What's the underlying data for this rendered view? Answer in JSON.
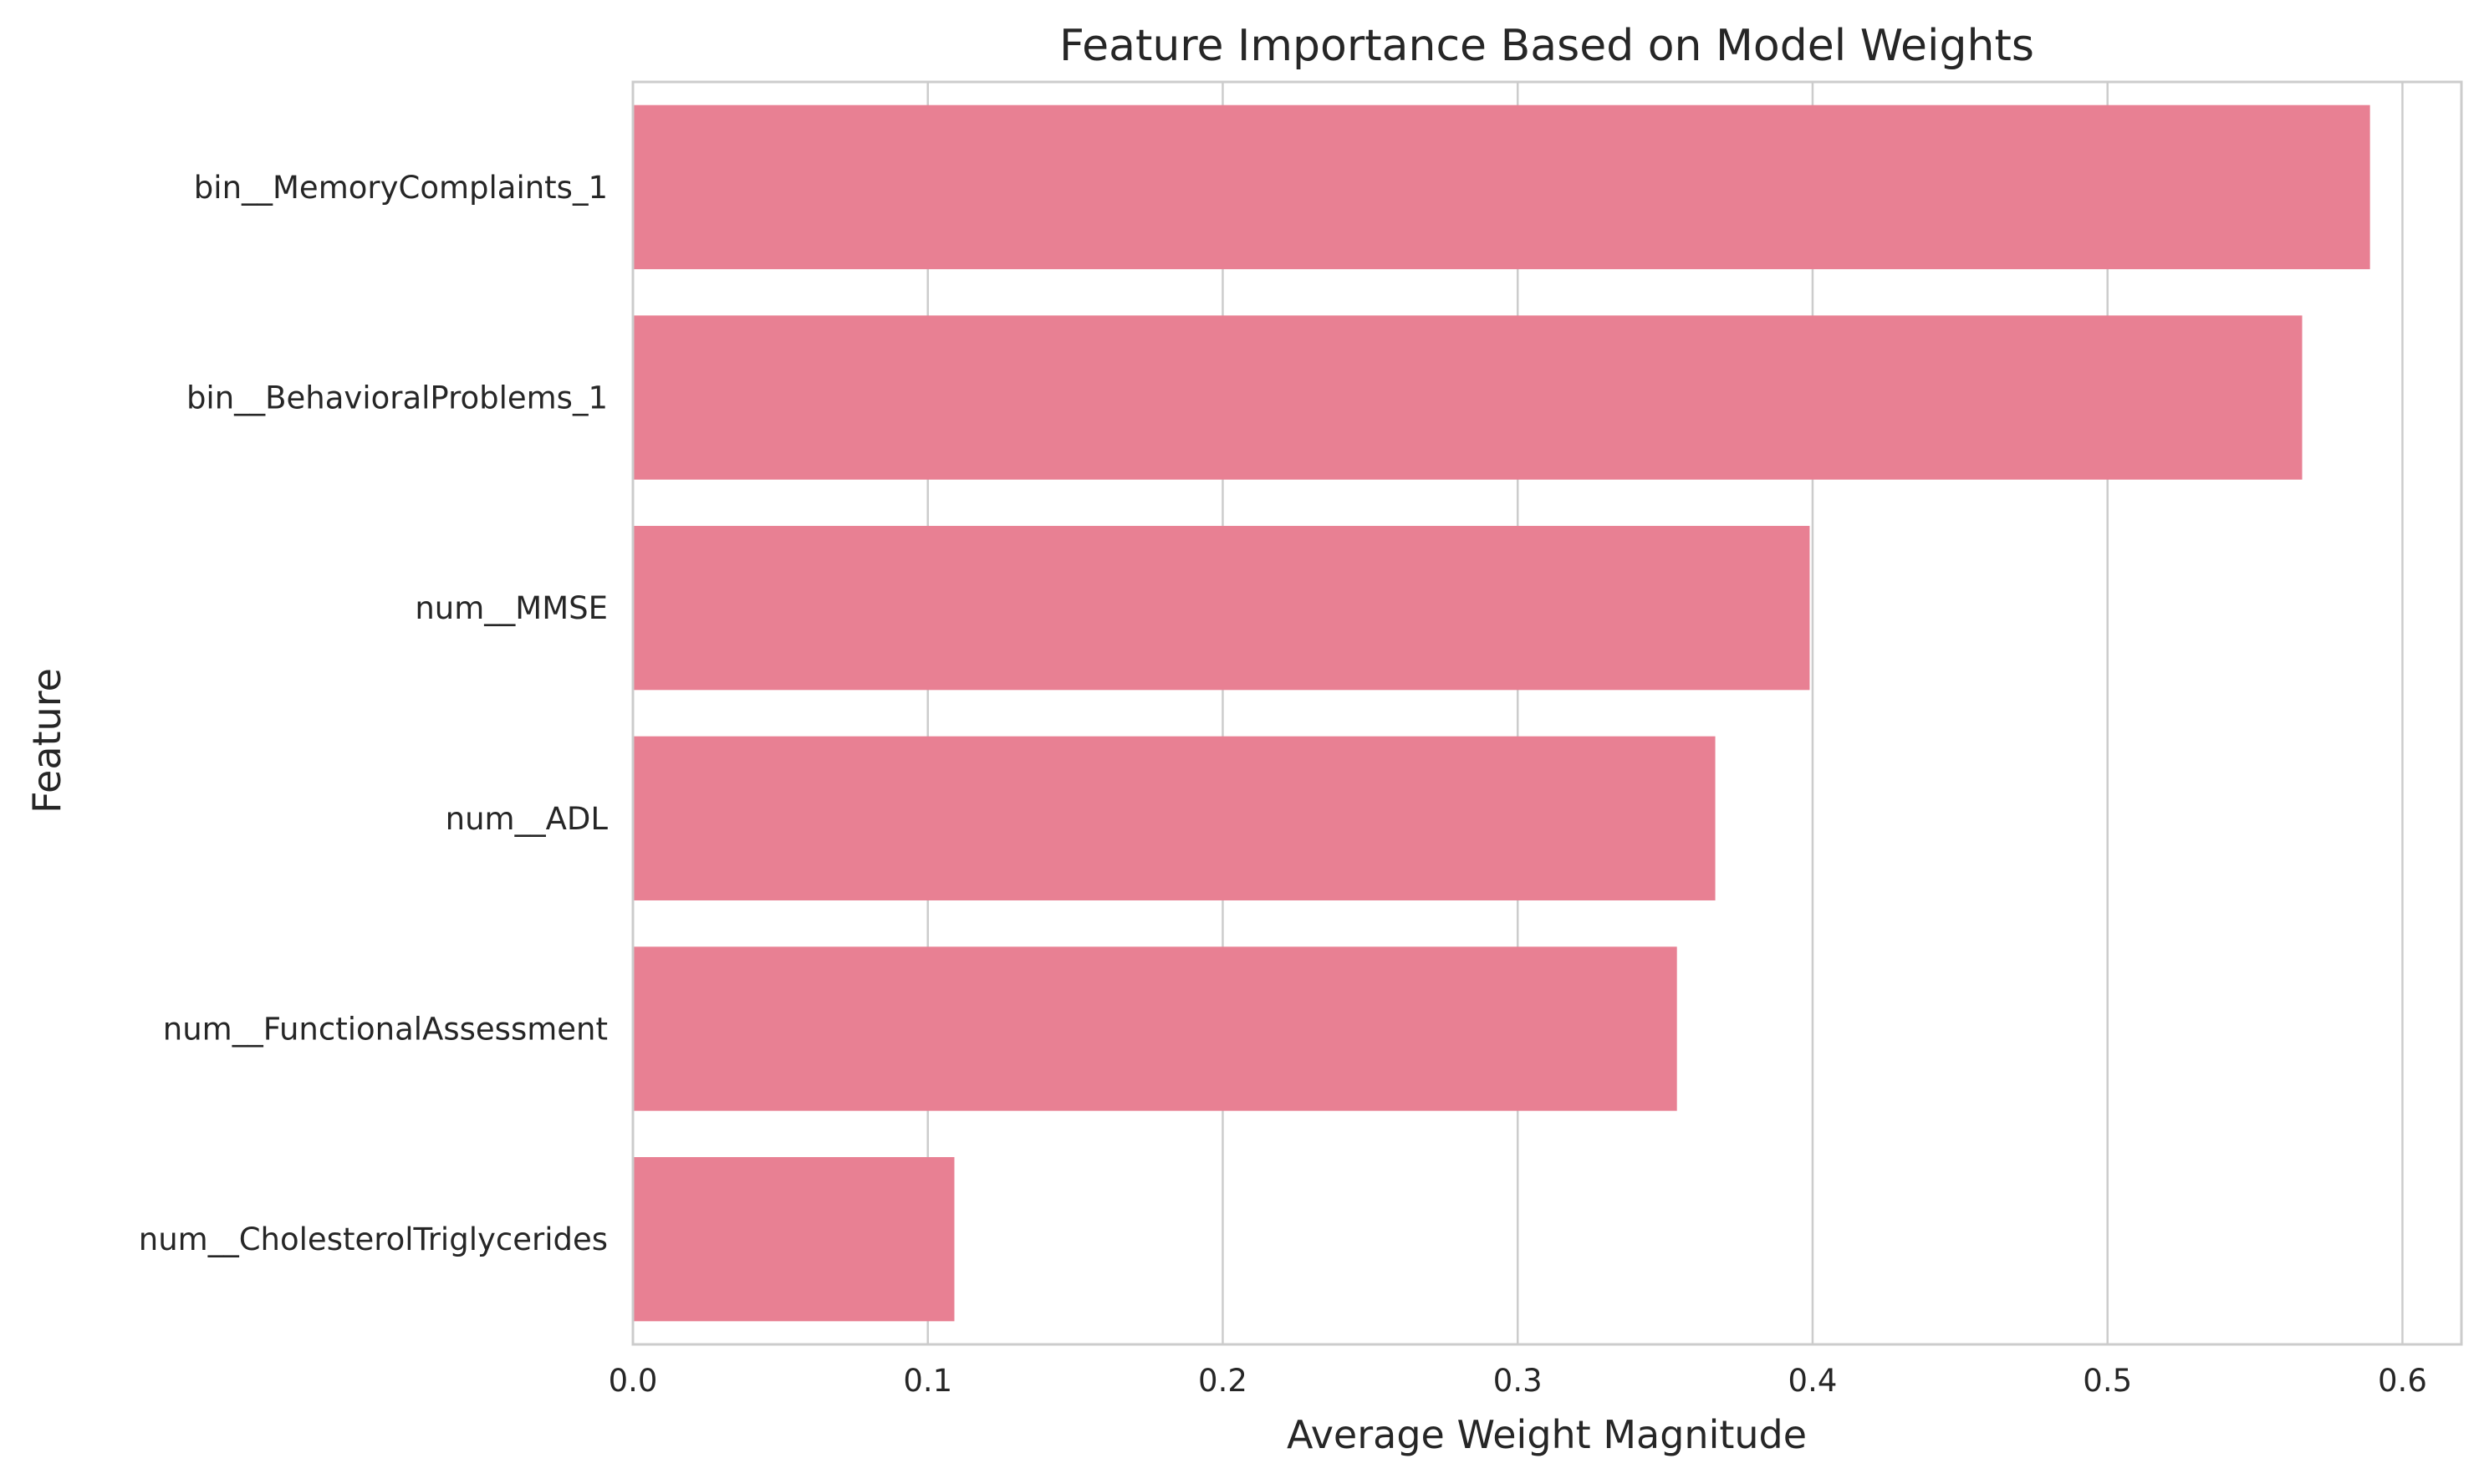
{
  "chart_data": {
    "type": "bar",
    "orientation": "horizontal",
    "title": "Feature Importance Based on Model Weights",
    "xlabel": "Average Weight Magnitude",
    "ylabel": "Feature",
    "categories": [
      "bin__MemoryComplaints_1",
      "bin__BehavioralProblems_1",
      "num__MMSE",
      "num__ADL",
      "num__FunctionalAssessment",
      "num__CholesterolTriglycerides"
    ],
    "values": [
      0.589,
      0.566,
      0.399,
      0.367,
      0.354,
      0.109
    ],
    "xlim": [
      0,
      0.62
    ],
    "xticks": [
      0.0,
      0.1,
      0.2,
      0.3,
      0.4,
      0.5,
      0.6
    ],
    "xtick_labels": [
      "0.0",
      "0.1",
      "0.2",
      "0.3",
      "0.4",
      "0.5",
      "0.6"
    ],
    "grid": "vertical",
    "bar_color": "#e88093",
    "grid_color": "#cccccc",
    "spine_color": "#cccccc"
  }
}
